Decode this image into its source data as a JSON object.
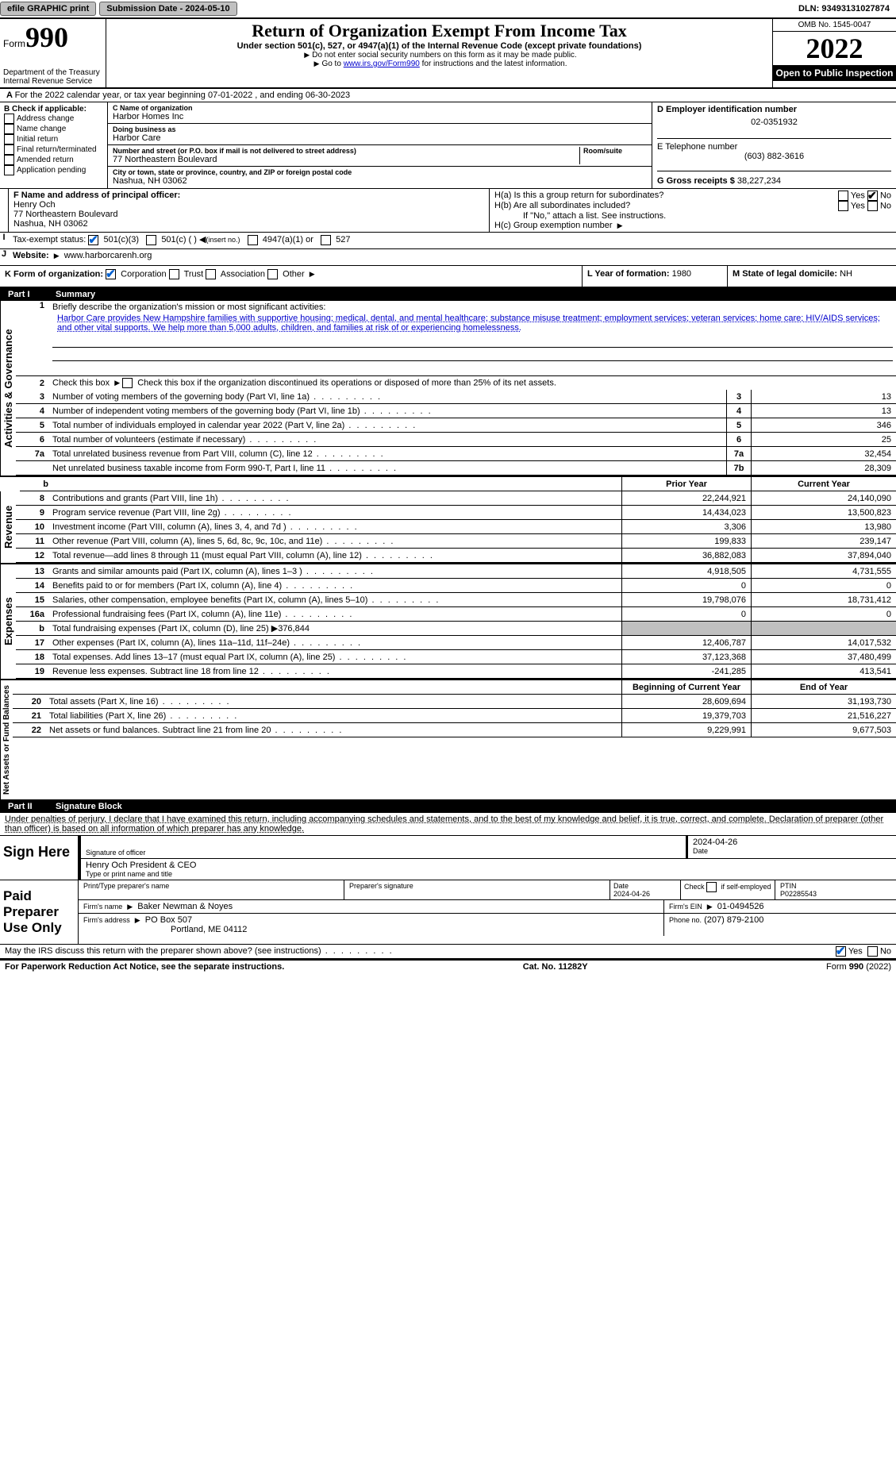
{
  "topbar": {
    "efile": "efile GRAPHIC print",
    "submission_label": "Submission Date - 2024-05-10",
    "dln": "DLN: 93493131027874"
  },
  "header": {
    "form": "Form",
    "form_num": "990",
    "dept1": "Department of the Treasury",
    "dept2": "Internal Revenue Service",
    "title": "Return of Organization Exempt From Income Tax",
    "subtitle": "Under section 501(c), 527, or 4947(a)(1) of the Internal Revenue Code (except private foundations)",
    "instr1": "Do not enter social security numbers on this form as it may be made public.",
    "instr2_pre": "Go to ",
    "instr2_link": "www.irs.gov/Form990",
    "instr2_post": " for instructions and the latest information.",
    "omb": "OMB No. 1545-0047",
    "year": "2022",
    "open": "Open to Public Inspection"
  },
  "section_a": "For the 2022 calendar year, or tax year beginning 07-01-2022    , and ending 06-30-2023",
  "col_b": {
    "header": "B Check if applicable:",
    "items": [
      "Address change",
      "Name change",
      "Initial return",
      "Final return/terminated",
      "Amended return",
      "Application pending"
    ]
  },
  "col_c": {
    "name_label": "C Name of organization",
    "name": "Harbor Homes Inc",
    "dba_label": "Doing business as",
    "dba": "Harbor Care",
    "street_label": "Number and street (or P.O. box if mail is not delivered to street address)",
    "room_label": "Room/suite",
    "street": "77 Northeastern Boulevard",
    "city_label": "City or town, state or province, country, and ZIP or foreign postal code",
    "city": "Nashua, NH  03062"
  },
  "col_d": {
    "ein_label": "D Employer identification number",
    "ein": "02-0351932",
    "phone_label": "E Telephone number",
    "phone": "(603) 882-3616",
    "receipts_label": "G Gross receipts $",
    "receipts": "38,227,234"
  },
  "row_f": {
    "label": "F  Name and address of principal officer:",
    "name": "Henry Och",
    "street": "77 Northeastern Boulevard",
    "city": "Nashua, NH  03062"
  },
  "row_h": {
    "ha": "H(a)  Is this a group return for subordinates?",
    "hb": "H(b)  Are all subordinates included?",
    "hb_note": "If \"No,\" attach a list. See instructions.",
    "hc": "H(c)  Group exemption number",
    "yes": "Yes",
    "no": "No"
  },
  "row_i": {
    "label": "Tax-exempt status:",
    "opt1": "501(c)(3)",
    "opt2": "501(c) (  )",
    "opt2_note": "(insert no.)",
    "opt3": "4947(a)(1) or",
    "opt4": "527"
  },
  "row_j": {
    "label": "Website:",
    "value": "www.harborcarenh.org"
  },
  "row_k": {
    "label": "K Form of organization:",
    "opts": [
      "Corporation",
      "Trust",
      "Association",
      "Other"
    ],
    "l_label": "L Year of formation:",
    "l_val": "1980",
    "m_label": "M State of legal domicile:",
    "m_val": "NH"
  },
  "part1": {
    "num": "Part I",
    "title": "Summary",
    "side_labels": [
      "Activities & Governance",
      "Revenue",
      "Expenses",
      "Net Assets or Fund Balances"
    ],
    "line1_label": "Briefly describe the organization's mission or most significant activities:",
    "mission": "Harbor Care provides New Hampshire families with supportive housing; medical, dental, and mental healthcare; substance misuse treatment; employment services; veteran services; home care; HIV/AIDS services; and other vital supports. We help more than 5,000 adults, children, and families at risk of or experiencing homelessness.",
    "line2": "Check this box       if the organization discontinued its operations or disposed of more than 25% of its net assets.",
    "lines_single": [
      {
        "n": "3",
        "d": "Number of voting members of the governing body (Part VI, line 1a)",
        "b": "3",
        "v": "13"
      },
      {
        "n": "4",
        "d": "Number of independent voting members of the governing body (Part VI, line 1b)",
        "b": "4",
        "v": "13"
      },
      {
        "n": "5",
        "d": "Total number of individuals employed in calendar year 2022 (Part V, line 2a)",
        "b": "5",
        "v": "346"
      },
      {
        "n": "6",
        "d": "Total number of volunteers (estimate if necessary)",
        "b": "6",
        "v": "25"
      },
      {
        "n": "7a",
        "d": "Total unrelated business revenue from Part VIII, column (C), line 12",
        "b": "7a",
        "v": "32,454"
      },
      {
        "n": "",
        "d": "Net unrelated business taxable income from Form 990-T, Part I, line 11",
        "b": "7b",
        "v": "28,309"
      }
    ],
    "col_headers": {
      "b": "b",
      "py": "Prior Year",
      "cy": "Current Year",
      "boy": "Beginning of Current Year",
      "eoy": "End of Year"
    },
    "revenue": [
      {
        "n": "8",
        "d": "Contributions and grants (Part VIII, line 1h)",
        "v1": "22,244,921",
        "v2": "24,140,090"
      },
      {
        "n": "9",
        "d": "Program service revenue (Part VIII, line 2g)",
        "v1": "14,434,023",
        "v2": "13,500,823"
      },
      {
        "n": "10",
        "d": "Investment income (Part VIII, column (A), lines 3, 4, and 7d )",
        "v1": "3,306",
        "v2": "13,980"
      },
      {
        "n": "11",
        "d": "Other revenue (Part VIII, column (A), lines 5, 6d, 8c, 9c, 10c, and 11e)",
        "v1": "199,833",
        "v2": "239,147"
      },
      {
        "n": "12",
        "d": "Total revenue—add lines 8 through 11 (must equal Part VIII, column (A), line 12)",
        "v1": "36,882,083",
        "v2": "37,894,040"
      }
    ],
    "expenses": [
      {
        "n": "13",
        "d": "Grants and similar amounts paid (Part IX, column (A), lines 1–3 )",
        "v1": "4,918,505",
        "v2": "4,731,555"
      },
      {
        "n": "14",
        "d": "Benefits paid to or for members (Part IX, column (A), line 4)",
        "v1": "0",
        "v2": "0"
      },
      {
        "n": "15",
        "d": "Salaries, other compensation, employee benefits (Part IX, column (A), lines 5–10)",
        "v1": "19,798,076",
        "v2": "18,731,412"
      },
      {
        "n": "16a",
        "d": "Professional fundraising fees (Part IX, column (A), line 11e)",
        "v1": "0",
        "v2": "0"
      },
      {
        "n": "b",
        "d": "Total fundraising expenses (Part IX, column (D), line 25) ▶376,844",
        "v1": "",
        "v2": "",
        "grey": true
      },
      {
        "n": "17",
        "d": "Other expenses (Part IX, column (A), lines 11a–11d, 11f–24e)",
        "v1": "12,406,787",
        "v2": "14,017,532"
      },
      {
        "n": "18",
        "d": "Total expenses. Add lines 13–17 (must equal Part IX, column (A), line 25)",
        "v1": "37,123,368",
        "v2": "37,480,499"
      },
      {
        "n": "19",
        "d": "Revenue less expenses. Subtract line 18 from line 12",
        "v1": "-241,285",
        "v2": "413,541"
      }
    ],
    "netassets": [
      {
        "n": "20",
        "d": "Total assets (Part X, line 16)",
        "v1": "28,609,694",
        "v2": "31,193,730"
      },
      {
        "n": "21",
        "d": "Total liabilities (Part X, line 26)",
        "v1": "19,379,703",
        "v2": "21,516,227"
      },
      {
        "n": "22",
        "d": "Net assets or fund balances. Subtract line 21 from line 20",
        "v1": "9,229,991",
        "v2": "9,677,503"
      }
    ]
  },
  "part2": {
    "num": "Part II",
    "title": "Signature Block",
    "perjury": "Under penalties of perjury, I declare that I have examined this return, including accompanying schedules and statements, and to the best of my knowledge and belief, it is true, correct, and complete. Declaration of preparer (other than officer) is based on all information of which preparer has any knowledge.",
    "sign_here": "Sign Here",
    "sig_officer": "Signature of officer",
    "sig_date": "2024-04-26",
    "date_label": "Date",
    "officer_name": "Henry Och  President & CEO",
    "type_name": "Type or print name and title",
    "paid_prep": "Paid Preparer Use Only",
    "pp_name_label": "Print/Type preparer's name",
    "pp_sig_label": "Preparer's signature",
    "pp_date_label": "Date",
    "pp_date": "2024-04-26",
    "pp_check": "Check         if self-employed",
    "ptin_label": "PTIN",
    "ptin": "P02285543",
    "firm_name_label": "Firm's name",
    "firm_name": "Baker Newman & Noyes",
    "firm_ein_label": "Firm's EIN",
    "firm_ein": "01-0494526",
    "firm_addr_label": "Firm's address",
    "firm_addr1": "PO Box 507",
    "firm_addr2": "Portland, ME  04112",
    "firm_phone_label": "Phone no.",
    "firm_phone": "(207) 879-2100",
    "discuss": "May the IRS discuss this return with the preparer shown above? (see instructions)",
    "yes": "Yes",
    "no": "No"
  },
  "footer": {
    "left": "For Paperwork Reduction Act Notice, see the separate instructions.",
    "mid": "Cat. No. 11282Y",
    "right": "Form 990 (2022)"
  }
}
